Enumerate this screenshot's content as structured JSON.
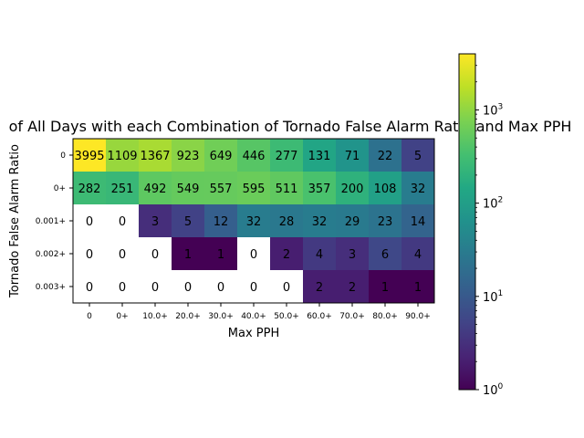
{
  "chart_data": {
    "type": "heatmap",
    "title": "of All Days with each Combination of Tornado False Alarm Ratio and Max PPH",
    "xlabel": "Max PPH",
    "ylabel": "Tornado False Alarm Ratio",
    "x_categories": [
      "0",
      "0+",
      "10.0+",
      "20.0+",
      "30.0+",
      "40.0+",
      "50.0+",
      "60.0+",
      "70.0+",
      "80.0+",
      "90.0+"
    ],
    "y_categories": [
      "0",
      "0+",
      "0.001+",
      "0.002+",
      "0.003+"
    ],
    "values": [
      [
        3995,
        1109,
        1367,
        923,
        649,
        446,
        277,
        131,
        71,
        22,
        5
      ],
      [
        282,
        251,
        492,
        549,
        557,
        595,
        511,
        357,
        200,
        108,
        32
      ],
      [
        0,
        0,
        3,
        5,
        12,
        32,
        28,
        32,
        29,
        23,
        14
      ],
      [
        0,
        0,
        0,
        1,
        1,
        0,
        2,
        4,
        3,
        6,
        4
      ],
      [
        0,
        0,
        0,
        0,
        0,
        0,
        0,
        2,
        2,
        1,
        1
      ]
    ],
    "colorbar": {
      "scale": "log",
      "colormap": "viridis",
      "range": [
        1,
        3995
      ],
      "tick_labels": [
        "10^0",
        "10^1",
        "10^2",
        "10^3"
      ],
      "tick_values": [
        1,
        10,
        100,
        1000
      ]
    },
    "zero_cell_color": "#ffffff",
    "grid": false
  }
}
